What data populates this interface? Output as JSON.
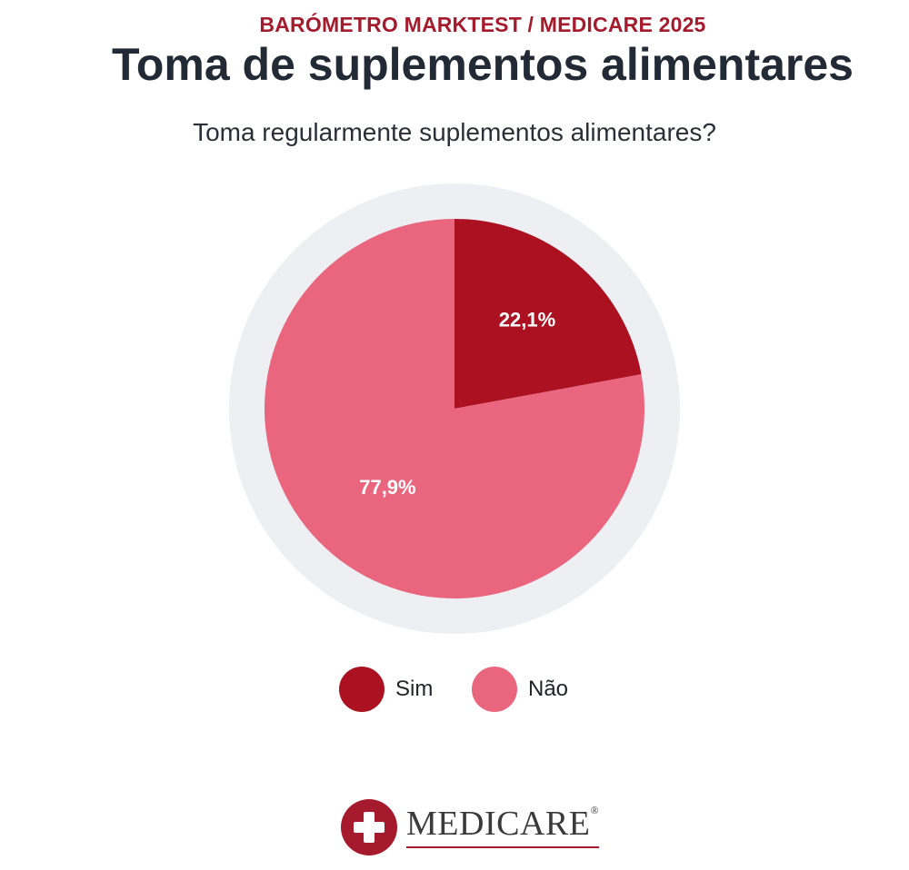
{
  "header": {
    "kicker": "BARÓMETRO MARKTEST / MEDICARE 2025",
    "title": "Toma de suplementos alimentares"
  },
  "chart_data": {
    "type": "pie",
    "subtitle": "Toma regularmente suplementos alimentares?",
    "categories": [
      "Sim",
      "Não"
    ],
    "values": [
      22.1,
      77.9
    ],
    "value_labels": [
      "22,1%",
      "77,9%"
    ],
    "colors": [
      "#ab1120",
      "#ea667f"
    ],
    "background_ring_color": "#eeeff3",
    "legend_position": "bottom"
  },
  "legend": {
    "items": [
      {
        "label": "Sim",
        "color": "#ab1120"
      },
      {
        "label": "Não",
        "color": "#ea667f"
      }
    ]
  },
  "footer": {
    "logo_text": "MEDICARE",
    "logo_mark": "®",
    "logo_color": "#a51a2c"
  }
}
